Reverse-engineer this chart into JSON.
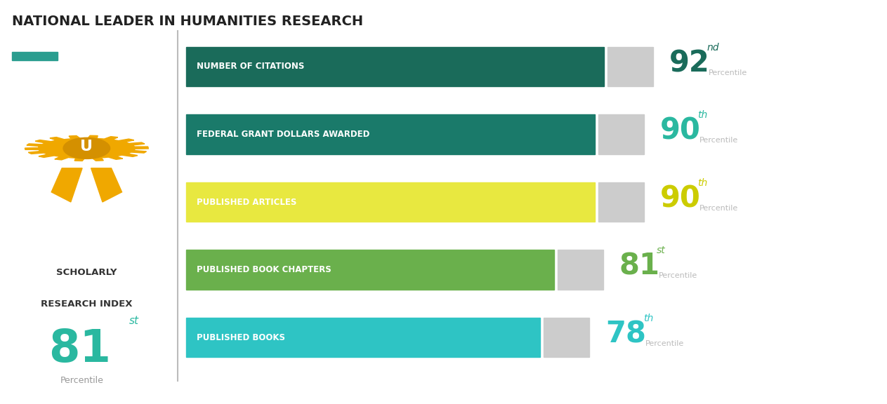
{
  "title": "NATIONAL LEADER IN HUMANITIES RESEARCH",
  "title_color": "#222222",
  "title_fontsize": 14,
  "subtitle_bar_color": "#2a9d8f",
  "bars": [
    {
      "label": "NUMBER OF CITATIONS",
      "percentile": 92,
      "suffix": "nd",
      "bar_color": "#1a6b5a",
      "text_color": "#1a6b5a",
      "bar_value": 92
    },
    {
      "label": "FEDERAL GRANT DOLLARS AWARDED",
      "percentile": 90,
      "suffix": "th",
      "bar_color": "#1a7a6a",
      "text_color": "#2ab8a0",
      "bar_value": 90
    },
    {
      "label": "PUBLISHED ARTICLES",
      "percentile": 90,
      "suffix": "th",
      "bar_color": "#e8e840",
      "text_color": "#cccc00",
      "bar_value": 90
    },
    {
      "label": "PUBLISHED BOOK CHAPTERS",
      "percentile": 81,
      "suffix": "st",
      "bar_color": "#6ab04c",
      "text_color": "#6ab04c",
      "bar_value": 81
    },
    {
      "label": "PUBLISHED BOOKS",
      "percentile": 78,
      "suffix": "th",
      "bar_color": "#2ec4c4",
      "text_color": "#2ec4c4",
      "bar_value": 78
    }
  ],
  "remainder_color": "#cccccc",
  "scholarly_label_line1": "SCHOLARLY",
  "scholarly_label_line2": "RESEARCH INDEX",
  "scholarly_value": "81",
  "scholarly_suffix": "st",
  "scholarly_color": "#2ab8a0",
  "percentile_label": "Percentile",
  "background_color": "#ffffff",
  "separator_color": "#bbbbbb",
  "badge_color": "#f0a800",
  "badge_dark": "#d49000"
}
